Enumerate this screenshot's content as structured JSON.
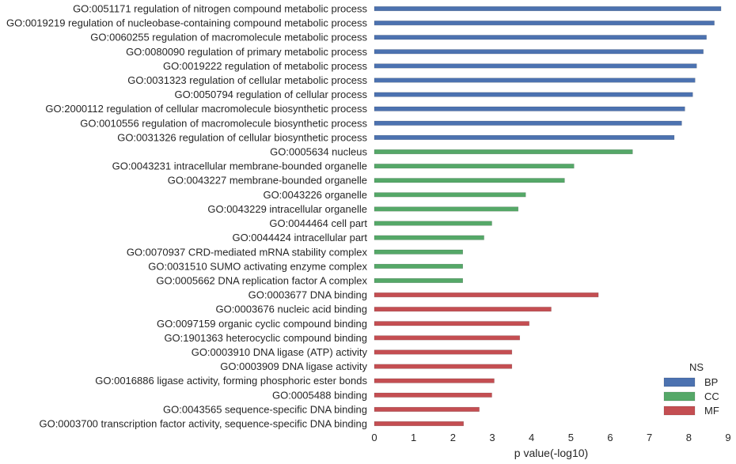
{
  "chart_data": {
    "type": "bar",
    "orientation": "horizontal",
    "xlabel": "p value(-log10)",
    "xlim": [
      0,
      9
    ],
    "xticks": [
      "0",
      "1",
      "2",
      "3",
      "4",
      "5",
      "6",
      "7",
      "8",
      "9"
    ],
    "grid": false,
    "legend": {
      "title": "NS",
      "placement": "bottom-right",
      "entries": [
        {
          "name": "BP",
          "color": "#4c72b0"
        },
        {
          "name": "CC",
          "color": "#55a868"
        },
        {
          "name": "MF",
          "color": "#c44e52"
        }
      ]
    },
    "bars": [
      {
        "label": "GO:0051171 regulation of nitrogen compound metabolic process",
        "value": 8.82,
        "ns": "BP"
      },
      {
        "label": "GO:0019219 regulation of nucleobase-containing compound metabolic process",
        "value": 8.65,
        "ns": "BP"
      },
      {
        "label": "GO:0060255 regulation of macromolecule metabolic process",
        "value": 8.45,
        "ns": "BP"
      },
      {
        "label": "GO:0080090 regulation of primary metabolic process",
        "value": 8.37,
        "ns": "BP"
      },
      {
        "label": "GO:0019222 regulation of metabolic process",
        "value": 8.2,
        "ns": "BP"
      },
      {
        "label": "GO:0031323 regulation of cellular metabolic process",
        "value": 8.16,
        "ns": "BP"
      },
      {
        "label": "GO:0050794 regulation of cellular process",
        "value": 8.1,
        "ns": "BP"
      },
      {
        "label": "GO:2000112 regulation of cellular macromolecule biosynthetic process",
        "value": 7.9,
        "ns": "BP"
      },
      {
        "label": "GO:0010556 regulation of macromolecule biosynthetic process",
        "value": 7.82,
        "ns": "BP"
      },
      {
        "label": "GO:0031326 regulation of cellular biosynthetic process",
        "value": 7.63,
        "ns": "BP"
      },
      {
        "label": "GO:0005634 nucleus",
        "value": 6.57,
        "ns": "CC"
      },
      {
        "label": "GO:0043231 intracellular membrane-bounded organelle",
        "value": 5.08,
        "ns": "CC"
      },
      {
        "label": "GO:0043227 membrane-bounded organelle",
        "value": 4.84,
        "ns": "CC"
      },
      {
        "label": "GO:0043226 organelle",
        "value": 3.85,
        "ns": "CC"
      },
      {
        "label": "GO:0043229 intracellular organelle",
        "value": 3.66,
        "ns": "CC"
      },
      {
        "label": "GO:0044464 cell part",
        "value": 2.99,
        "ns": "CC"
      },
      {
        "label": "GO:0044424 intracellular part",
        "value": 2.79,
        "ns": "CC"
      },
      {
        "label": "GO:0070937 CRD-mediated mRNA stability complex",
        "value": 2.25,
        "ns": "CC"
      },
      {
        "label": "GO:0031510 SUMO activating enzyme complex",
        "value": 2.25,
        "ns": "CC"
      },
      {
        "label": "GO:0005662 DNA replication factor A complex",
        "value": 2.25,
        "ns": "CC"
      },
      {
        "label": "GO:0003677 DNA binding",
        "value": 5.7,
        "ns": "MF"
      },
      {
        "label": "GO:0003676 nucleic acid binding",
        "value": 4.5,
        "ns": "MF"
      },
      {
        "label": "GO:0097159 organic cyclic compound binding",
        "value": 3.94,
        "ns": "MF"
      },
      {
        "label": "GO:1901363 heterocyclic compound binding",
        "value": 3.7,
        "ns": "MF"
      },
      {
        "label": "GO:0003910 DNA ligase (ATP) activity",
        "value": 3.5,
        "ns": "MF"
      },
      {
        "label": "GO:0003909 DNA ligase activity",
        "value": 3.5,
        "ns": "MF"
      },
      {
        "label": "GO:0016886 ligase activity, forming phosphoric ester bonds",
        "value": 3.05,
        "ns": "MF"
      },
      {
        "label": "GO:0005488 binding",
        "value": 2.99,
        "ns": "MF"
      },
      {
        "label": "GO:0043565 sequence-specific DNA binding",
        "value": 2.67,
        "ns": "MF"
      },
      {
        "label": "GO:0003700 transcription factor activity, sequence-specific DNA binding",
        "value": 2.27,
        "ns": "MF"
      }
    ]
  }
}
